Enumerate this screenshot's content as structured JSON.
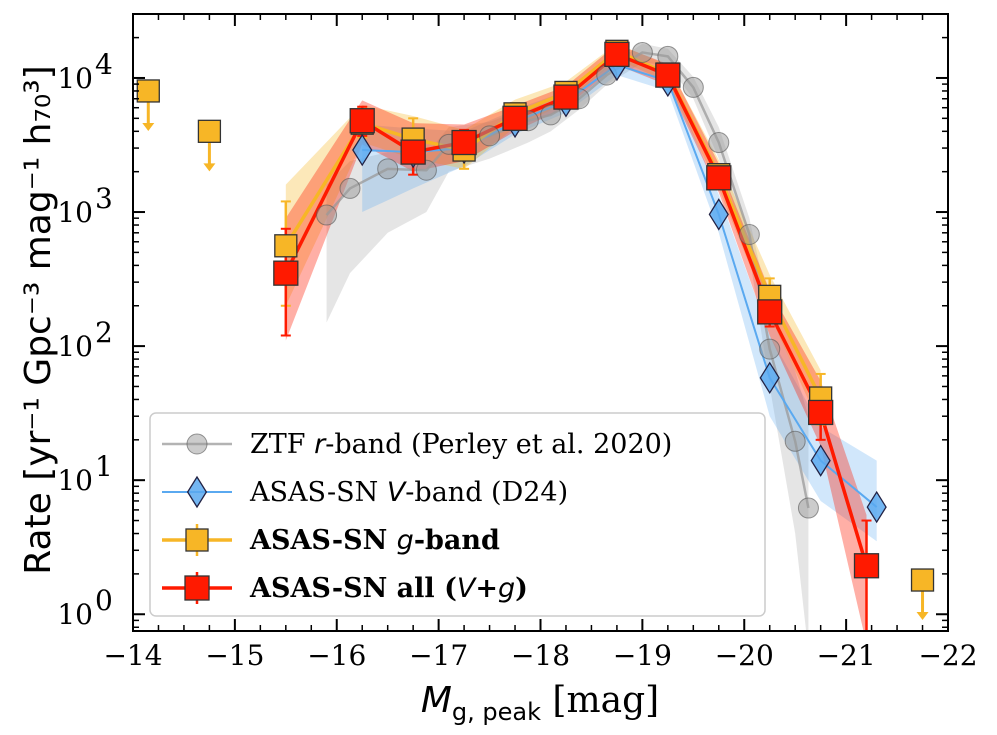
{
  "chart_data": {
    "type": "line",
    "yscale": "log",
    "xlabel_main": "M",
    "xlabel_sub": "g, peak",
    "xlabel_unit": " [mag]",
    "ylabel": "Rate [yr⁻¹ Gpc⁻³ mag⁻¹ h₇₀³]",
    "xlim": [
      -14,
      -22
    ],
    "ylim": [
      0.75,
      30000
    ],
    "xticks": [
      -14,
      -15,
      -16,
      -17,
      -18,
      -19,
      -20,
      -21,
      -22
    ],
    "xtick_labels": [
      "−14",
      "−15",
      "−16",
      "−17",
      "−18",
      "−19",
      "−20",
      "−21",
      "−22"
    ],
    "yticks": [
      1,
      10,
      100,
      1000,
      10000
    ],
    "ytick_bases": [
      "10",
      "10",
      "10",
      "10",
      "10"
    ],
    "ytick_exps": [
      "0",
      "1",
      "2",
      "3",
      "4"
    ],
    "legend_position": "lower-left",
    "series": [
      {
        "name": "ZTF r-band (Perley et al. 2020)",
        "legend_parts": [
          "ZTF ",
          "r",
          "-band (Perley et al. 2020)"
        ],
        "color": "#999999",
        "marker": "circle",
        "x": [
          -15.9,
          -16.13,
          -16.5,
          -16.88,
          -17.1,
          -17.5,
          -17.88,
          -18.1,
          -18.38,
          -18.65,
          -19.0,
          -19.25,
          -19.5,
          -19.75,
          -20.05,
          -20.25,
          -20.5,
          -20.63
        ],
        "y": [
          950,
          1500,
          2100,
          2050,
          3200,
          3700,
          4800,
          5300,
          7000,
          10500,
          15500,
          14500,
          8500,
          3300,
          680,
          95,
          19.5,
          6.2
        ],
        "band_x": [
          -15.9,
          -16.13,
          -16.5,
          -16.88,
          -17.1,
          -17.5,
          -17.88,
          -18.1,
          -18.38,
          -18.65,
          -19.0,
          -19.25,
          -19.5,
          -19.75,
          -20.05,
          -20.25,
          -20.5,
          -20.63
        ],
        "band_lo": [
          150,
          350,
          700,
          1000,
          2000,
          2500,
          3300,
          4000,
          5800,
          8900,
          13000,
          12500,
          7000,
          2500,
          480,
          50,
          4,
          0.5
        ],
        "band_hi": [
          1600,
          2400,
          2800,
          2700,
          4300,
          4700,
          6000,
          6600,
          8300,
          12000,
          18000,
          16500,
          10200,
          4300,
          900,
          180,
          65,
          30
        ]
      },
      {
        "name": "ASAS-SN V-band (D24)",
        "legend_parts": [
          "ASAS-SN ",
          "V",
          "-band (D24)"
        ],
        "color": "#5aa9f0",
        "marker": "diamond",
        "x": [
          -16.25,
          -16.75,
          -17.25,
          -17.75,
          -18.25,
          -18.75,
          -19.25,
          -19.75,
          -20.25,
          -20.75,
          -21.3
        ],
        "y": [
          2900,
          2800,
          3000,
          4700,
          6700,
          12500,
          9500,
          960,
          58,
          14,
          6.3
        ],
        "band_x": [
          -16.25,
          -16.75,
          -17.25,
          -17.75,
          -18.25,
          -18.75,
          -19.25,
          -19.75,
          -20.25,
          -20.75,
          -21.3
        ],
        "band_lo": [
          1000,
          1500,
          2200,
          3800,
          5500,
          10500,
          8000,
          700,
          30,
          7,
          3.5
        ],
        "band_hi": [
          4500,
          4200,
          4000,
          5800,
          8000,
          14500,
          11000,
          1350,
          120,
          25,
          14
        ]
      },
      {
        "name": "ASAS-SN g-band",
        "legend_parts": [
          "ASAS-SN ",
          "g",
          "-band"
        ],
        "bold": true,
        "color": "#f7b626",
        "marker": "square",
        "x": [
          -15.5,
          -16.25,
          -16.75,
          -17.25,
          -17.75,
          -18.25,
          -18.75,
          -19.25,
          -19.75,
          -20.25,
          -20.75
        ],
        "y": [
          560,
          4600,
          3500,
          2900,
          5400,
          7800,
          15800,
          10700,
          1900,
          235,
          41
        ],
        "err_lo": [
          200,
          3600,
          2700,
          2100,
          4600,
          6800,
          14000,
          9500,
          1600,
          180,
          26
        ],
        "err_hi": [
          1200,
          5900,
          5000,
          3900,
          6500,
          9000,
          17500,
          12000,
          2200,
          320,
          62
        ],
        "band_x": [
          -15.5,
          -16.25,
          -16.75,
          -17.25,
          -17.75,
          -18.25,
          -18.75,
          -19.25,
          -19.75,
          -20.25,
          -20.75
        ],
        "band_lo": [
          200,
          3300,
          2500,
          2100,
          4300,
          6500,
          13800,
          9300,
          1500,
          170,
          25
        ],
        "band_hi": [
          1600,
          6300,
          5200,
          4100,
          6900,
          9400,
          18000,
          12500,
          2450,
          340,
          66
        ],
        "upper_limits": [
          {
            "x": -14.15,
            "y": 8000
          },
          {
            "x": -14.75,
            "y": 4000
          },
          {
            "x": -21.75,
            "y": 1.8
          }
        ]
      },
      {
        "name": "ASAS-SN all (V+g)",
        "legend_parts": [
          "ASAS-SN all (",
          "V",
          "+",
          "g",
          ")"
        ],
        "bold": true,
        "color": "#ff1a00",
        "marker": "square",
        "x": [
          -15.5,
          -16.25,
          -16.75,
          -17.25,
          -17.75,
          -18.25,
          -18.75,
          -19.25,
          -19.75,
          -20.25,
          -20.75,
          -21.2
        ],
        "y": [
          350,
          4800,
          2800,
          3300,
          5000,
          7200,
          15000,
          10500,
          1800,
          180,
          32,
          2.3
        ],
        "err_lo": [
          120,
          3700,
          1900,
          2500,
          4200,
          6200,
          13200,
          9300,
          1500,
          140,
          20,
          0.75
        ],
        "err_hi": [
          750,
          6100,
          4000,
          4100,
          5900,
          8300,
          17000,
          12000,
          2100,
          230,
          45,
          5
        ],
        "band_x": [
          -15.5,
          -16.25,
          -16.75,
          -17.25,
          -17.75,
          -18.25,
          -18.75,
          -19.25,
          -19.75,
          -20.25,
          -20.75,
          -21.2
        ],
        "band_lo": [
          110,
          3200,
          2000,
          2400,
          4000,
          6000,
          12500,
          8800,
          1400,
          120,
          18,
          0.6
        ],
        "band_hi": [
          900,
          6800,
          4600,
          4500,
          6200,
          8700,
          17800,
          12700,
          2300,
          260,
          55,
          5.5
        ]
      }
    ]
  }
}
